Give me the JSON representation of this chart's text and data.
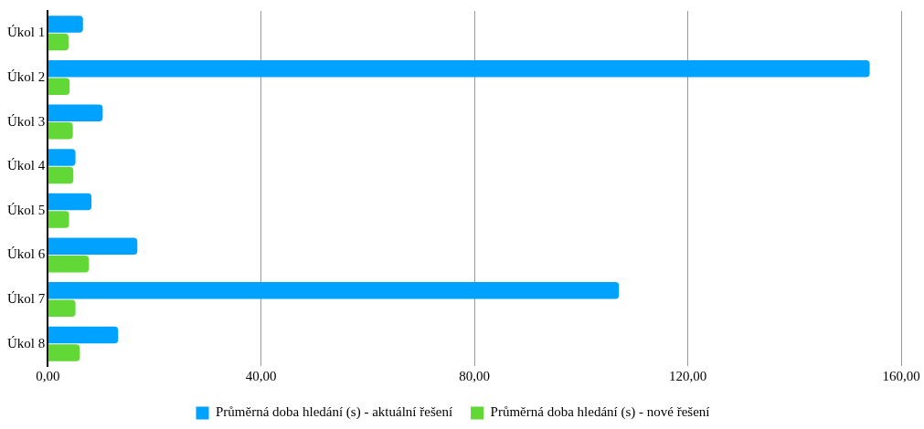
{
  "chart_data": {
    "type": "bar",
    "orientation": "horizontal",
    "categories": [
      "Úkol 1",
      "Úkol 2",
      "Úkol 3",
      "Úkol 4",
      "Úkol 5",
      "Úkol 6",
      "Úkol 7",
      "Úkol 8"
    ],
    "series": [
      {
        "name": "Průměrná doba hledání (s) - aktuální řešení",
        "color": "#00a2ff",
        "values": [
          6.6,
          154.1,
          10.3,
          5.2,
          8.2,
          16.8,
          107.1,
          13.2
        ]
      },
      {
        "name": "Průměrná doba hledání (s) - nové řešení",
        "color": "#61d836",
        "values": [
          3.9,
          4.1,
          4.7,
          4.8,
          4.0,
          7.7,
          5.2,
          6.0
        ]
      }
    ],
    "xlim": [
      0,
      160
    ],
    "xticks": [
      {
        "value": 0,
        "label": "0,00"
      },
      {
        "value": 40,
        "label": "40,00"
      },
      {
        "value": 80,
        "label": "80,00"
      },
      {
        "value": 120,
        "label": "120,00"
      },
      {
        "value": 160,
        "label": "160,00"
      }
    ],
    "grid": "x",
    "legend": "bottom"
  }
}
